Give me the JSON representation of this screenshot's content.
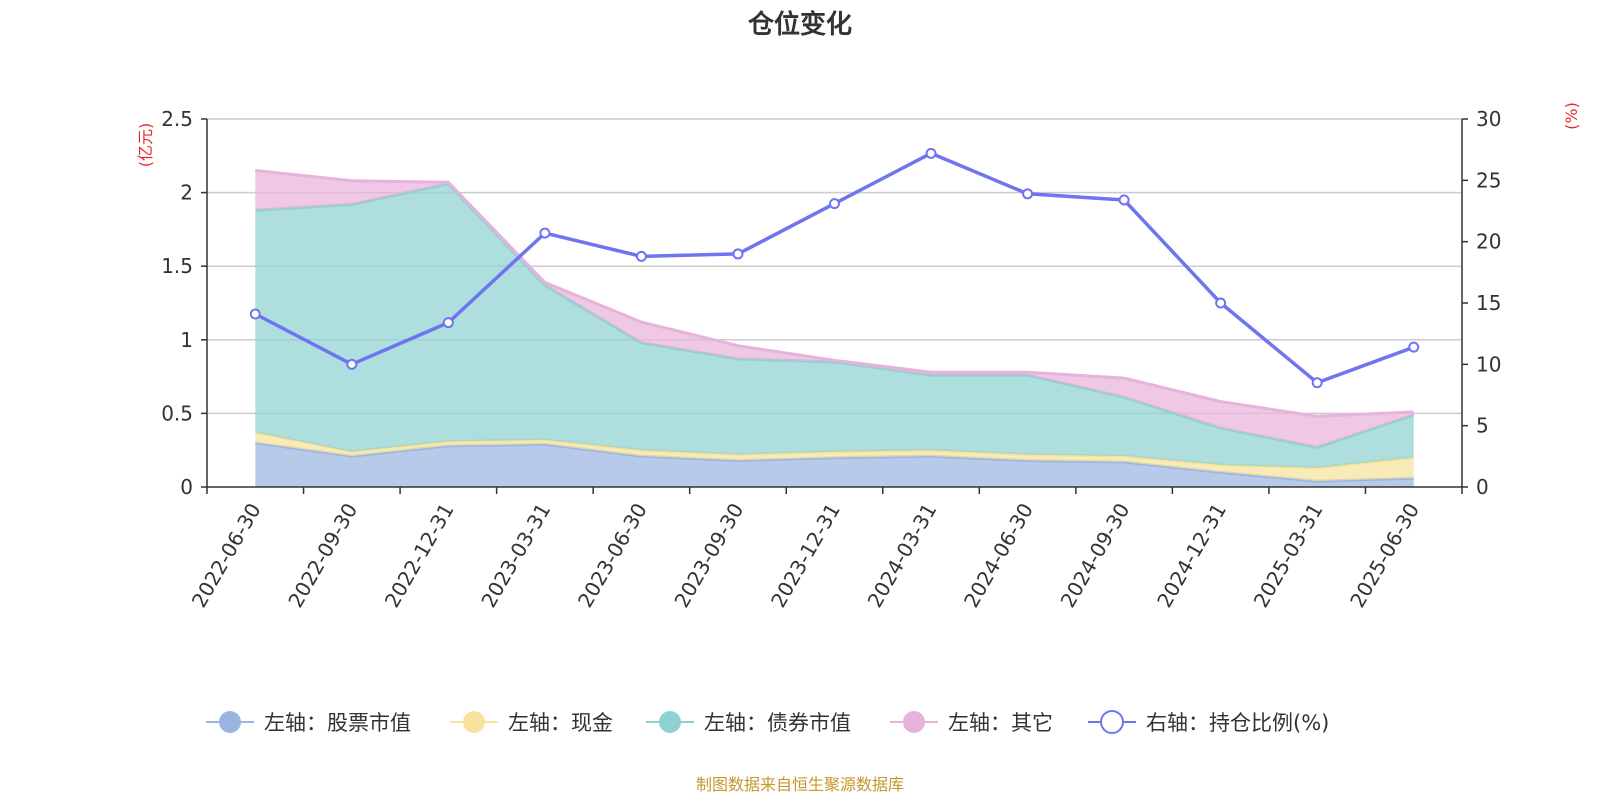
{
  "chart_data": {
    "type": "area",
    "title": "仓位变化",
    "left_axis": {
      "unit": "(亿元)",
      "min": 0,
      "max": 2.5,
      "ticks": [
        "0",
        "0.5",
        "1",
        "1.5",
        "2",
        "2.5"
      ]
    },
    "right_axis": {
      "unit": "(%)",
      "min": 0,
      "max": 30,
      "ticks": [
        "0",
        "5",
        "10",
        "15",
        "20",
        "25",
        "30"
      ]
    },
    "categories": [
      "2022-06-30",
      "2022-09-30",
      "2022-12-31",
      "2023-03-31",
      "2023-06-30",
      "2023-09-30",
      "2023-12-31",
      "2024-03-31",
      "2024-06-30",
      "2024-09-30",
      "2024-12-31",
      "2025-03-31",
      "2025-06-30"
    ],
    "stacked_series": [
      {
        "name": "左轴：股票市值",
        "color": "#9bb5e0",
        "values": [
          0.3,
          0.21,
          0.28,
          0.29,
          0.21,
          0.18,
          0.2,
          0.21,
          0.18,
          0.17,
          0.1,
          0.04,
          0.06
        ]
      },
      {
        "name": "左轴：现金",
        "color": "#f7e39b",
        "values": [
          0.07,
          0.03,
          0.03,
          0.03,
          0.04,
          0.04,
          0.04,
          0.04,
          0.04,
          0.04,
          0.05,
          0.09,
          0.14
        ]
      },
      {
        "name": "左轴：债券市值",
        "color": "#8fd1d1",
        "values": [
          1.51,
          1.68,
          1.75,
          1.05,
          0.73,
          0.65,
          0.61,
          0.51,
          0.54,
          0.4,
          0.25,
          0.14,
          0.29
        ]
      },
      {
        "name": "左轴：其它",
        "color": "#e7b3da",
        "values": [
          0.27,
          0.16,
          0.01,
          0.02,
          0.14,
          0.09,
          0.01,
          0.02,
          0.02,
          0.13,
          0.18,
          0.21,
          0.02
        ]
      }
    ],
    "line_series": {
      "name": "右轴：持仓比例(%)",
      "color": "#6f74f0",
      "axis": "right",
      "values": [
        14.1,
        10.0,
        13.4,
        20.7,
        18.8,
        19.0,
        23.1,
        27.2,
        23.9,
        23.4,
        15.0,
        8.5,
        11.4
      ]
    },
    "grid": true,
    "legend_position": "bottom",
    "source_text": "制图数据来自恒生聚源数据库",
    "axis_unit_color": "#e8272c",
    "source_color": "#c9962b"
  }
}
